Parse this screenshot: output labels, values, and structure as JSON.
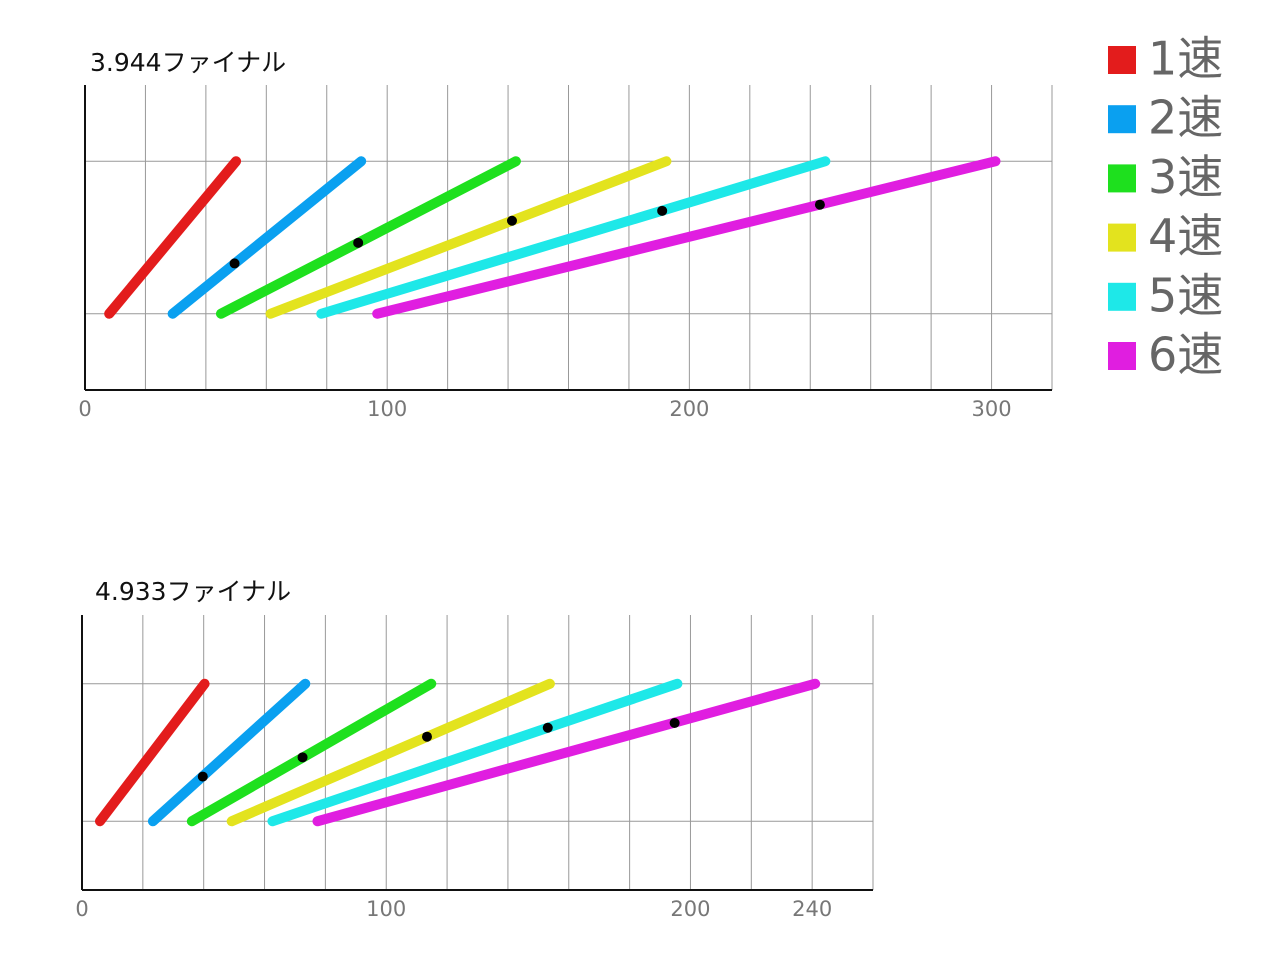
{
  "chart_data": [
    {
      "type": "line",
      "title": "3.944ファイナル",
      "xlim": [
        0,
        320
      ],
      "xticks": [
        0,
        100,
        200,
        300
      ],
      "xgrid": [
        20,
        40,
        60,
        80,
        100,
        120,
        140,
        160,
        180,
        200,
        220,
        240,
        260,
        280,
        300,
        320
      ],
      "ylim": [
        0,
        4
      ],
      "yticks": [
        1,
        3
      ],
      "ytick_labels": false,
      "grid": true,
      "legend": "right",
      "series": [
        {
          "name": "1速",
          "color": "#e31c1c",
          "x": [
            8,
            50
          ],
          "values": [
            1,
            3
          ]
        },
        {
          "name": "2速",
          "color": "#0aa0f0",
          "x": [
            29,
            91.4
          ],
          "values": [
            1,
            3
          ],
          "shift_point": {
            "x": 49.5,
            "y": 1.66
          }
        },
        {
          "name": "3速",
          "color": "#1ee01e",
          "x": [
            45,
            142.6
          ],
          "values": [
            1,
            3
          ],
          "shift_point": {
            "x": 90.4,
            "y": 1.93
          }
        },
        {
          "name": "4速",
          "color": "#e3e31e",
          "x": [
            61.4,
            192.4
          ],
          "values": [
            1,
            3
          ],
          "shift_point": {
            "x": 141.3,
            "y": 2.22
          }
        },
        {
          "name": "5速",
          "color": "#1ee8e8",
          "x": [
            78.2,
            245
          ],
          "values": [
            1,
            3
          ],
          "shift_point": {
            "x": 191,
            "y": 2.35
          }
        },
        {
          "name": "6速",
          "color": "#e01ee0",
          "x": [
            96.7,
            301.3
          ],
          "values": [
            1,
            3
          ],
          "shift_point": {
            "x": 243.2,
            "y": 2.43
          }
        }
      ]
    },
    {
      "type": "line",
      "title": "4.933ファイナル",
      "xlim": [
        0,
        260
      ],
      "xticks": [
        0,
        100,
        200,
        240
      ],
      "xgrid": [
        20,
        40,
        60,
        80,
        100,
        120,
        140,
        160,
        180,
        200,
        220,
        240,
        260
      ],
      "ylim": [
        0,
        4
      ],
      "yticks": [
        1,
        3
      ],
      "ytick_labels": false,
      "grid": true,
      "legend": false,
      "series": [
        {
          "name": "1速",
          "color": "#e31c1c",
          "x": [
            5.9,
            40.3
          ],
          "values": [
            1,
            3
          ]
        },
        {
          "name": "2速",
          "color": "#0aa0f0",
          "x": [
            23.3,
            73.4
          ],
          "values": [
            1,
            3
          ],
          "shift_point": {
            "x": 39.7,
            "y": 1.65
          }
        },
        {
          "name": "3速",
          "color": "#1ee01e",
          "x": [
            36.1,
            114.8
          ],
          "values": [
            1,
            3
          ],
          "shift_point": {
            "x": 72.5,
            "y": 1.93
          }
        },
        {
          "name": "4速",
          "color": "#e3e31e",
          "x": [
            49.2,
            153.8
          ],
          "values": [
            1,
            3
          ],
          "shift_point": {
            "x": 113.4,
            "y": 2.23
          }
        },
        {
          "name": "5速",
          "color": "#1ee8e8",
          "x": [
            62.6,
            195.7
          ],
          "values": [
            1,
            3
          ],
          "shift_point": {
            "x": 153.1,
            "y": 2.36
          }
        },
        {
          "name": "6速",
          "color": "#e01ee0",
          "x": [
            77.4,
            241
          ],
          "values": [
            1,
            3
          ],
          "shift_point": {
            "x": 194.8,
            "y": 2.43
          }
        }
      ]
    }
  ]
}
